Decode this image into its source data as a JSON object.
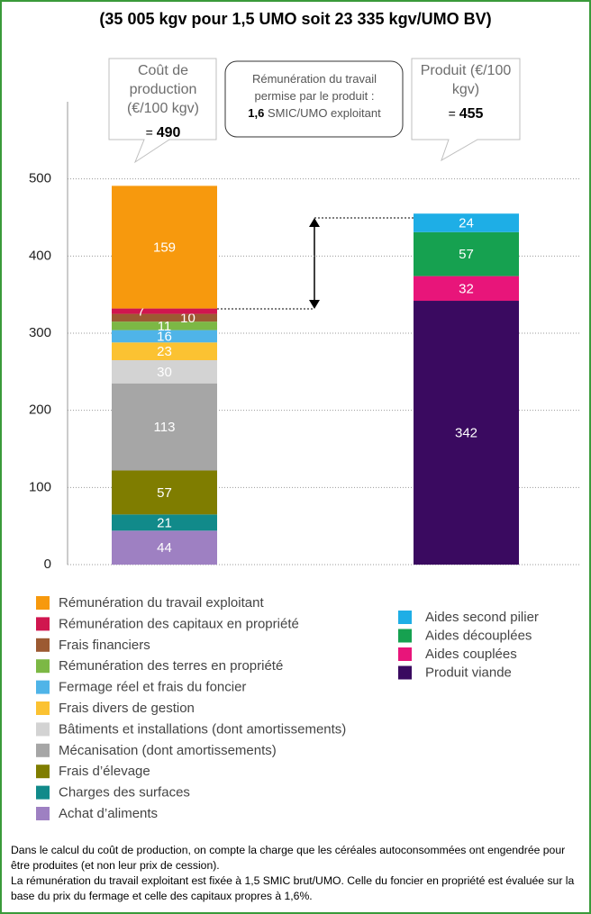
{
  "chart_data": {
    "type": "stacked_bar",
    "title": "(35 005 kgv pour 1,5 UMO soit 23 335 kgv/UMO BV)",
    "categories": [
      "Coût de production (€/100 kgv)",
      "Produit (€/100 kgv)"
    ],
    "totals": [
      490,
      455
    ],
    "total_sign": "=",
    "note_box": {
      "lines": [
        "Rémunération du travail",
        "permise par le produit :"
      ],
      "bold": "1,6",
      "rest": "SMIC/UMO exploitant"
    },
    "series": [
      {
        "name": "Achat d’aliments",
        "color": "#9e80c2",
        "values": [
          44,
          null
        ]
      },
      {
        "name": "Charges des surfaces",
        "color": "#118a8a",
        "values": [
          21,
          null
        ]
      },
      {
        "name": "Frais d’élevage",
        "color": "#7f7d00",
        "values": [
          57,
          null
        ]
      },
      {
        "name": "Mécanisation (dont amortissements)",
        "color": "#a6a6a6",
        "values": [
          113,
          null
        ]
      },
      {
        "name": "Bâtiments et installations (dont amortissements)",
        "color": "#d3d3d3",
        "values": [
          30,
          null
        ]
      },
      {
        "name": "Frais divers de gestion",
        "color": "#fbc232",
        "values": [
          23,
          null
        ]
      },
      {
        "name": "Fermage réel et frais du foncier",
        "color": "#4fb4e8",
        "values": [
          16,
          null
        ]
      },
      {
        "name": "Rémunération des terres en propriété",
        "color": "#7cb845",
        "values": [
          11,
          null
        ]
      },
      {
        "name": "Frais financiers",
        "color": "#9c5a32",
        "values": [
          10,
          null
        ]
      },
      {
        "name": "Rémunération des capitaux en propriété",
        "color": "#d0164f",
        "values": [
          7,
          null
        ]
      },
      {
        "name": "Rémunération du travail exploitant",
        "color": "#f7990d",
        "values": [
          159,
          null
        ]
      },
      {
        "name": "Produit viande",
        "color": "#3a0a60",
        "values": [
          null,
          342
        ]
      },
      {
        "name": "Aides couplées",
        "color": "#e8157a",
        "values": [
          null,
          32
        ]
      },
      {
        "name": "Aides découplées",
        "color": "#16a150",
        "values": [
          null,
          57
        ]
      },
      {
        "name": "Aides second pilier",
        "color": "#1eaee6",
        "values": [
          null,
          24
        ]
      }
    ],
    "ylim": [
      0,
      600
    ],
    "yticks": [
      0,
      100,
      200,
      300,
      400,
      500
    ],
    "grid": true,
    "footnote": [
      "Dans le calcul du coût de production, on compte la charge que les céréales autoconsommées ont engendrée pour être produites (et non leur prix de cession).",
      "La rémunération du travail exploitant est fixée à 1,5 SMIC brut/UMO. Celle du foncier en propriété est évaluée sur la base du prix du fermage et celle des capitaux propres à 1,6%."
    ]
  }
}
